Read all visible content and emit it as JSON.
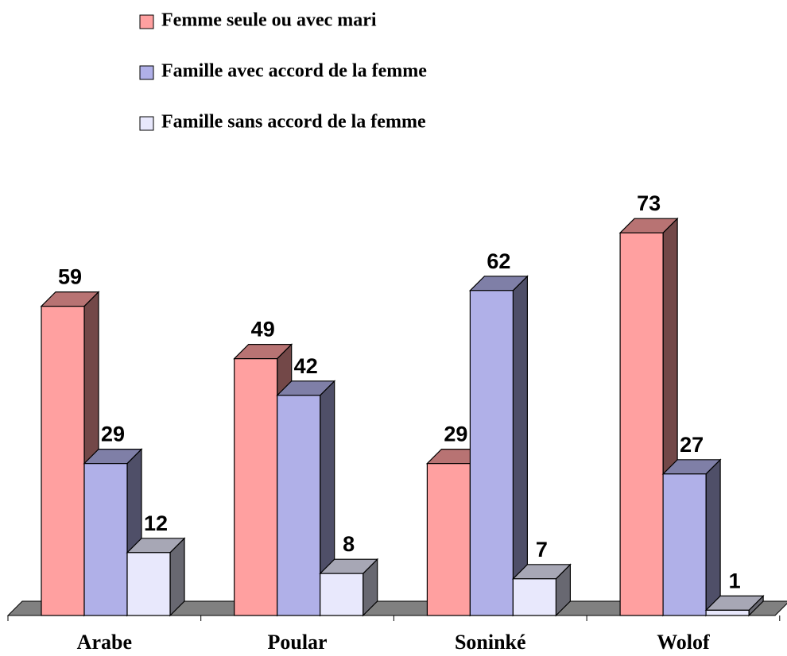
{
  "chart_data": {
    "type": "bar3d",
    "categories": [
      "Arabe",
      "Poular",
      "Soninké",
      "Wolof"
    ],
    "series": [
      {
        "name": "Femme seule ou avec mari",
        "color": "#ffa0a0",
        "values": [
          59,
          49,
          29,
          73
        ]
      },
      {
        "name": "Famille avec accord de la femme",
        "color": "#b0b0e8",
        "values": [
          29,
          42,
          62,
          27
        ]
      },
      {
        "name": "Famille sans accord de la femme",
        "color": "#e8e8fc",
        "values": [
          12,
          8,
          7,
          1
        ]
      }
    ],
    "legend": "top-left"
  }
}
